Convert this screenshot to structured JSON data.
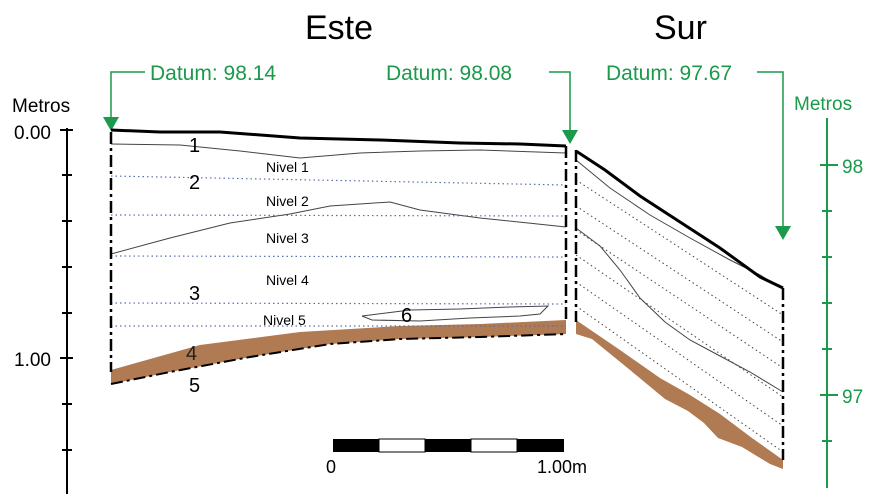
{
  "headings": {
    "east": "Este",
    "south": "Sur"
  },
  "datums": {
    "d1": "Datum: 98.14",
    "d2": "Datum: 98.08",
    "d3": "Datum: 97.67"
  },
  "left_axis": {
    "title": "Metros",
    "tick_top": "0.00",
    "tick_bottom": "1.00"
  },
  "right_axis": {
    "title": "Metros",
    "tick_top": "98",
    "tick_bottom": "97"
  },
  "levels": {
    "n1": "Nivel 1",
    "n2": "Nivel 2",
    "n3": "Nivel 3",
    "n4": "Nivel 4",
    "n5": "Nivel 5"
  },
  "layers": {
    "l1": "1",
    "l2": "2",
    "l3": "3",
    "l4": "4",
    "l5": "5",
    "l6": "6"
  },
  "scale_bar": {
    "start": "0",
    "end": "1.00m"
  },
  "colors": {
    "datum_green": "#1a9a4a",
    "soil_brown": "#b07a52",
    "level_line_blue": "#5a6fb0"
  }
}
